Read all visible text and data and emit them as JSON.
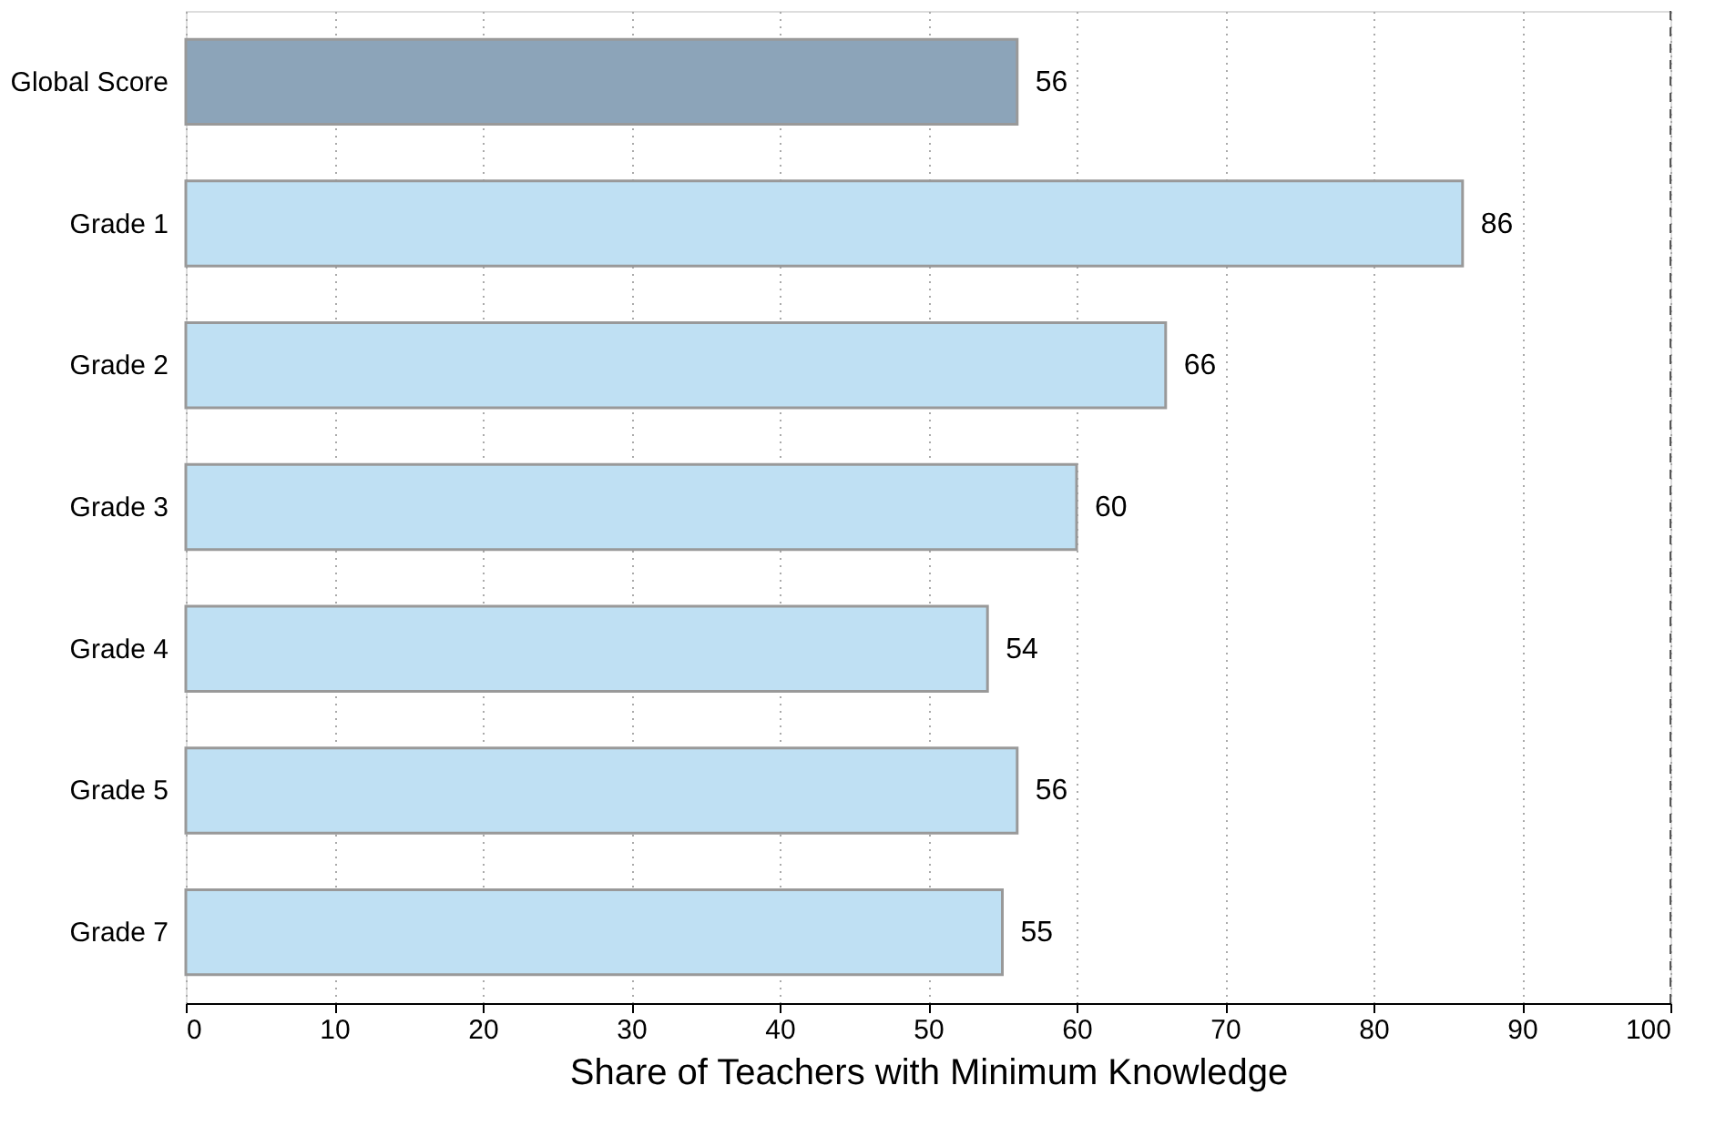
{
  "chart_data": {
    "type": "bar",
    "orientation": "horizontal",
    "xlabel": "Share of Teachers with Minimum Knowledge",
    "categories": [
      "Global Score",
      "Grade 1",
      "Grade 2",
      "Grade 3",
      "Grade 4",
      "Grade 5",
      "Grade 7"
    ],
    "values": [
      56,
      86,
      66,
      60,
      54,
      56,
      55
    ],
    "colors": [
      "#8ca4b9",
      "#bfe0f3",
      "#bfe0f3",
      "#bfe0f3",
      "#bfe0f3",
      "#bfe0f3",
      "#bfe0f3"
    ],
    "xlim": [
      0,
      100
    ],
    "xticks": [
      0,
      10,
      20,
      30,
      40,
      50,
      60,
      70,
      80,
      90,
      100
    ],
    "grid": "x",
    "data_labels": true,
    "ref_lines": [
      {
        "axis": "x",
        "value": 100,
        "line_style": "dashed",
        "color": "#555555"
      }
    ]
  }
}
